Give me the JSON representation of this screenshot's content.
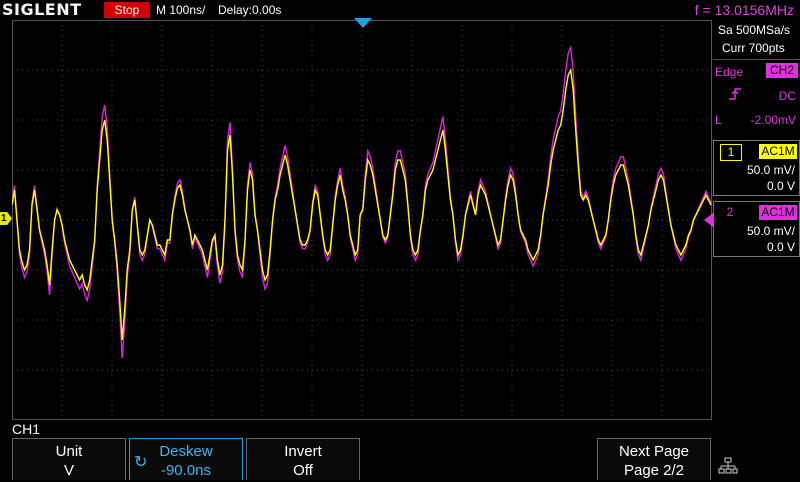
{
  "header": {
    "brand": "SIGLENT",
    "run_state": "Stop",
    "timebase": "M 100ns/",
    "delay": "Delay:0.00s",
    "frequency": "f = 13.0156MHz"
  },
  "acquisition": {
    "sample_rate": "Sa 500MSa/s",
    "record_length": "Curr 700pts"
  },
  "trigger": {
    "type": "Edge",
    "source": "CH2",
    "slope_icon": "rising-edge-icon",
    "coupling": "DC",
    "level_prefix": "L",
    "level": "-2.00mV"
  },
  "channels": [
    {
      "number": "1",
      "coupling": "AC1M",
      "scale": "50.0 mV/",
      "offset": "0.0 V",
      "color": "#ffff00"
    },
    {
      "number": "2",
      "coupling": "AC1M",
      "scale": "50.0 mV/",
      "offset": "0.0 V",
      "color": "#e020e0"
    }
  ],
  "menu_channel": "CH1",
  "softkeys": [
    {
      "label": "Unit",
      "value": "V"
    },
    {
      "label": "Deskew",
      "value": "-90.0ns",
      "icon": "knob-icon"
    },
    {
      "label": "Invert",
      "value": "Off"
    },
    {
      "label": "Next Page",
      "value": "Page 2/2"
    }
  ],
  "colors": {
    "ch1": "#ffff00",
    "ch2": "#e020e0",
    "accent": "#1a9fe0",
    "stop": "#d40000"
  },
  "waveform": {
    "screen_divisions": {
      "x": 14,
      "y": 8
    },
    "ch1_samples": [
      245,
      260,
      230,
      200,
      188,
      180,
      185,
      200,
      245,
      260,
      240,
      220,
      210,
      200,
      185,
      165,
      200,
      230,
      240,
      235,
      225,
      210,
      200,
      190,
      185,
      180,
      175,
      170,
      175,
      165,
      160,
      170,
      190,
      210,
      260,
      290,
      320,
      330,
      310,
      270,
      230,
      210,
      185,
      150,
      110,
      140,
      180,
      200,
      240,
      250,
      225,
      200,
      195,
      200,
      215,
      230,
      225,
      215,
      205,
      205,
      200,
      195,
      210,
      210,
      235,
      250,
      262,
      265,
      255,
      240,
      230,
      220,
      205,
      215,
      210,
      205,
      200,
      190,
      180,
      195,
      210,
      215,
      190,
      175,
      185,
      230,
      300,
      315,
      275,
      220,
      195,
      185,
      180,
      210,
      260,
      280,
      270,
      235,
      220,
      200,
      180,
      170,
      175,
      200,
      230,
      250,
      260,
      275,
      285,
      295,
      285,
      270,
      255,
      240,
      225,
      210,
      205,
      205,
      210,
      220,
      245,
      260,
      255,
      235,
      215,
      200,
      195,
      200,
      225,
      250,
      265,
      275,
      260,
      250,
      235,
      215,
      205,
      195,
      200,
      235,
      240,
      270,
      290,
      285,
      275,
      260,
      245,
      230,
      215,
      210,
      215,
      235,
      255,
      280,
      290,
      290,
      280,
      270,
      245,
      215,
      200,
      195,
      200,
      220,
      235,
      260,
      270,
      275,
      280,
      290,
      300,
      310,
      320,
      300,
      275,
      250,
      235,
      210,
      195,
      200,
      215,
      235,
      245,
      255,
      245,
      235,
      255,
      265,
      260,
      255,
      245,
      235,
      225,
      215,
      205,
      210,
      230,
      250,
      265,
      275,
      270,
      255,
      235,
      220,
      215,
      210,
      200,
      195,
      190,
      195,
      200,
      215,
      235,
      250,
      265,
      285,
      300,
      310,
      320,
      325,
      340,
      360,
      375,
      380,
      360,
      320,
      285,
      255,
      250,
      255,
      250,
      240,
      230,
      220,
      210,
      205,
      210,
      215,
      230,
      250,
      265,
      275,
      280,
      285,
      285,
      275,
      265,
      250,
      235,
      215,
      200,
      195,
      205,
      215,
      225,
      240,
      250,
      260,
      270,
      275,
      270,
      255,
      240,
      225,
      215,
      205,
      200,
      195,
      200,
      205,
      215,
      220,
      230,
      235,
      240,
      245,
      250,
      255,
      250,
      245
    ]
  }
}
